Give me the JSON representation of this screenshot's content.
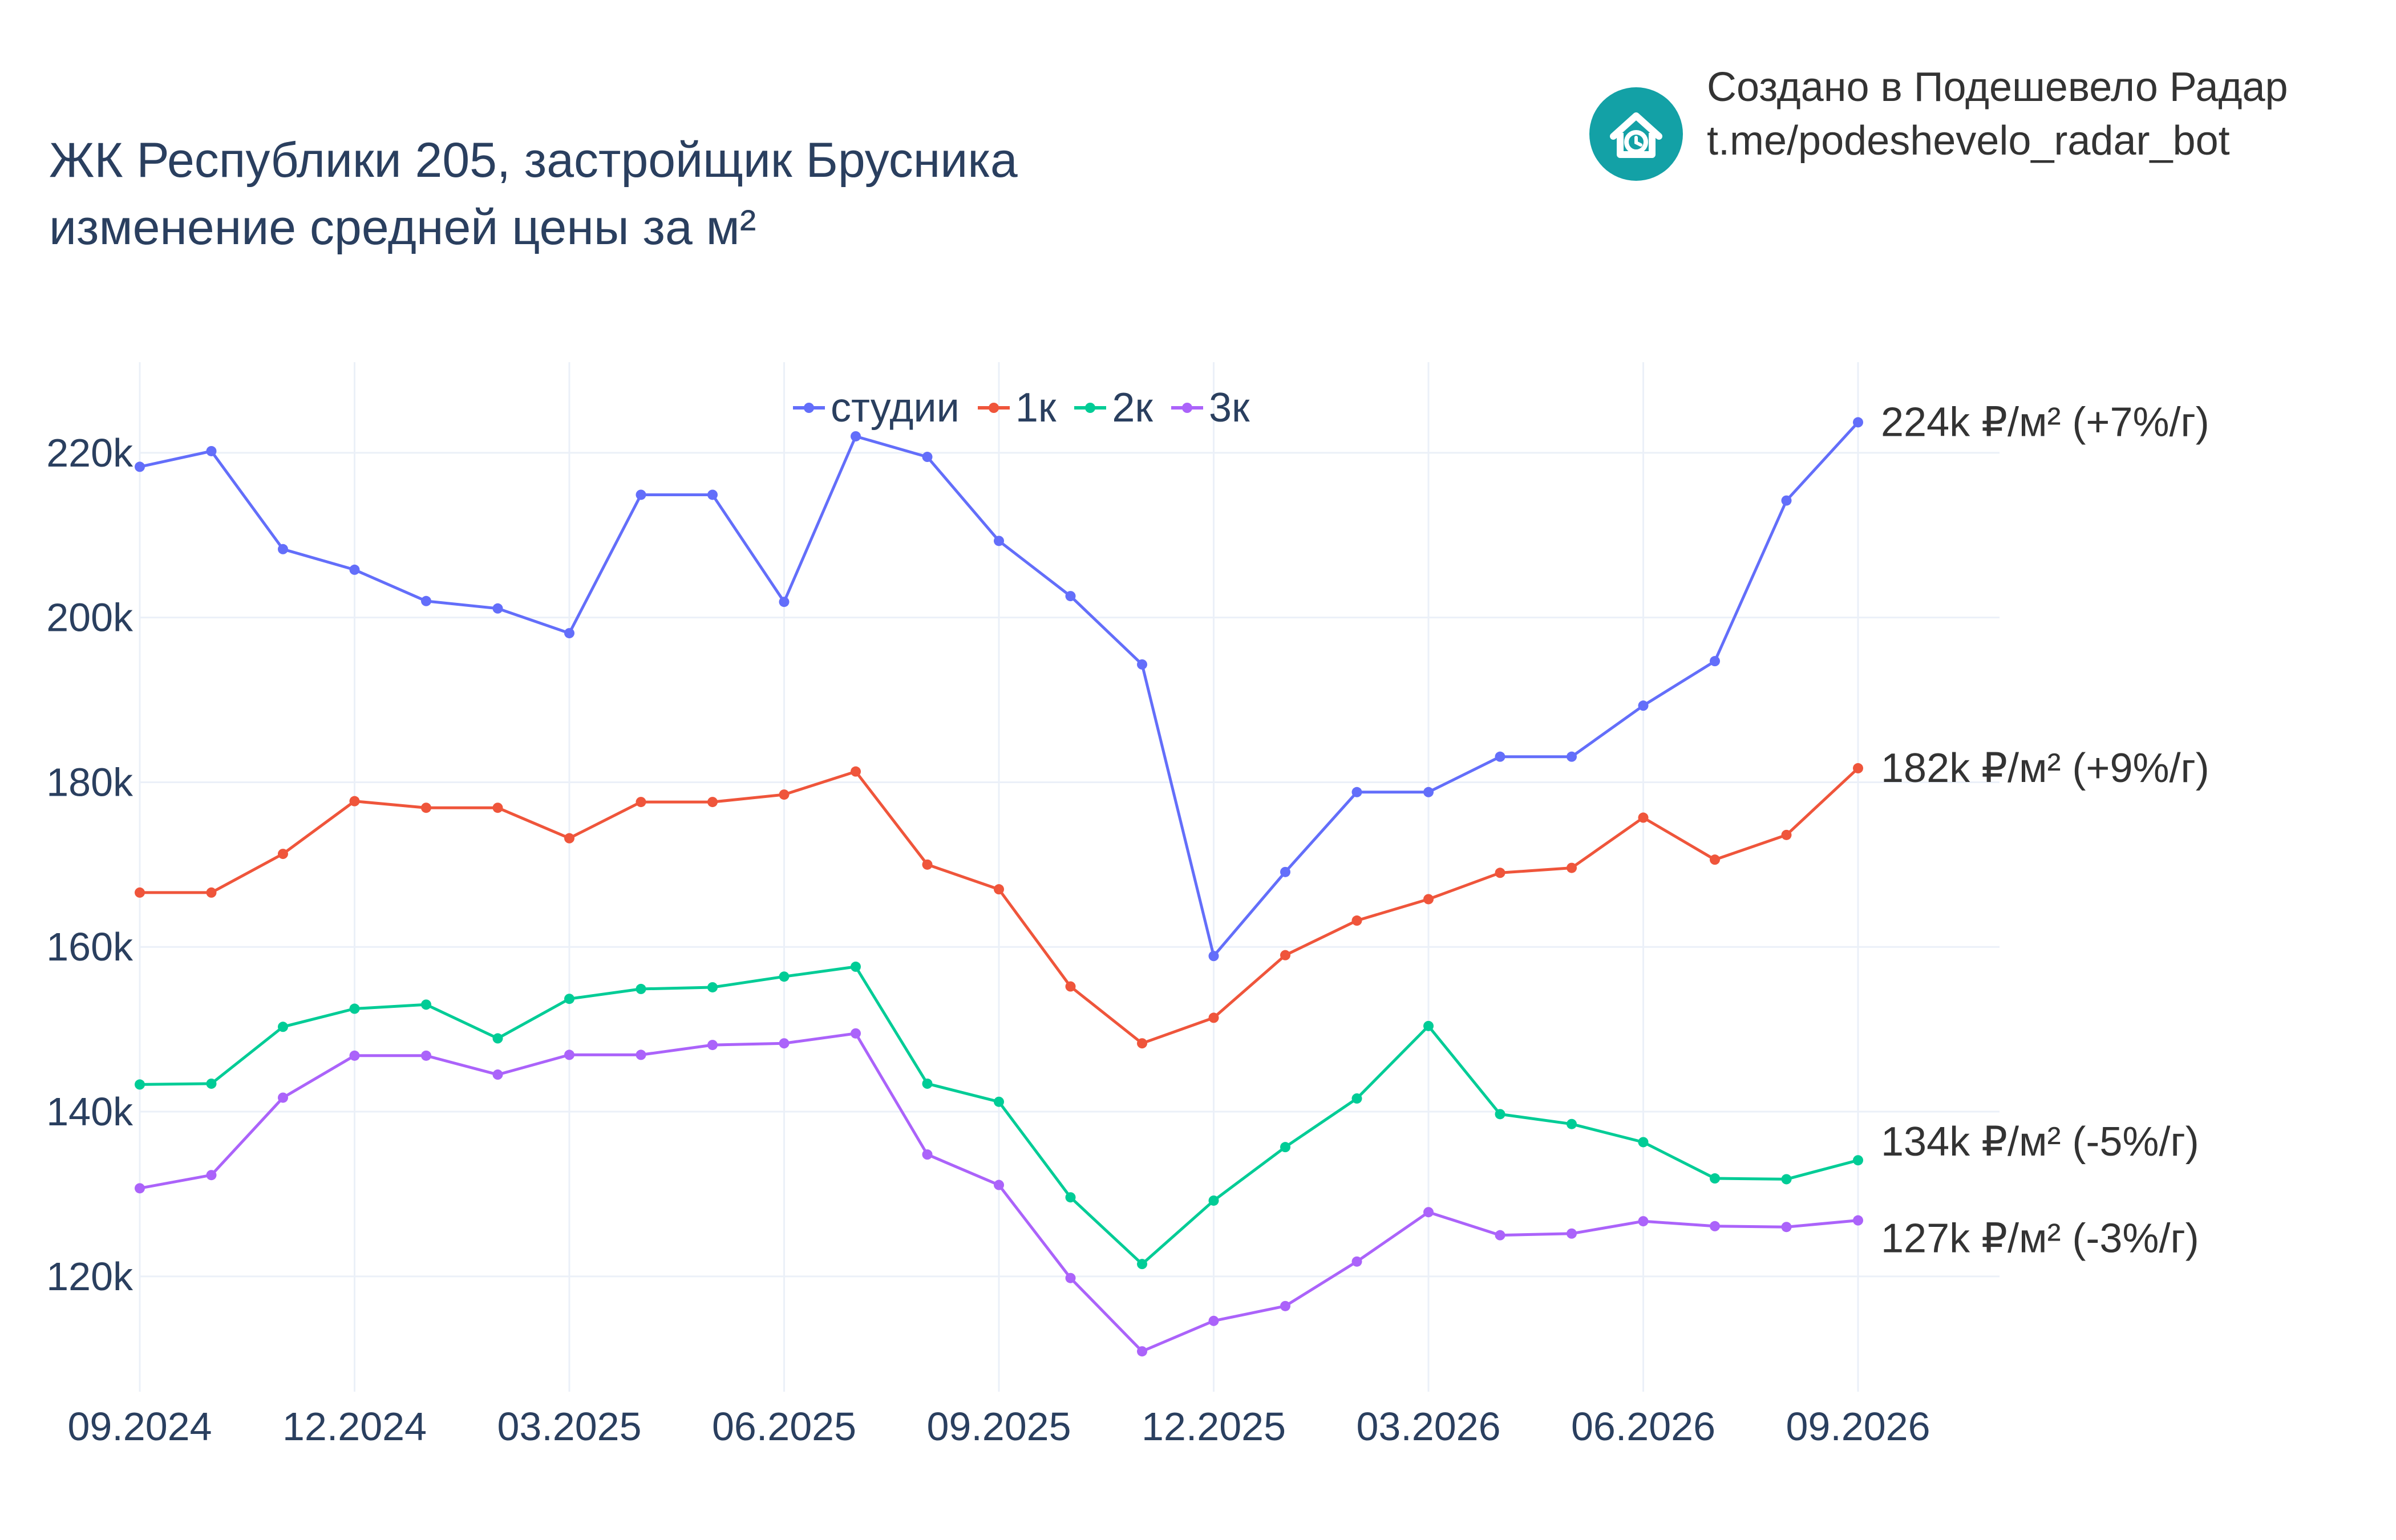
{
  "title": {
    "line1": "ЖК Республики 205, застройщик Брусника",
    "line2": "изменение средней цены за м²"
  },
  "branding": {
    "line1": "Создано в Подешевело Радар",
    "line2": "t.me/podeshevelo_radar_bot",
    "logo_icon": "house-clock-icon",
    "logo_color": "#13a1a6"
  },
  "chart_data": {
    "type": "line",
    "x": [
      "09.2024",
      "10.2024",
      "11.2024",
      "12.2024",
      "01.2025",
      "02.2025",
      "03.2025",
      "04.2025",
      "05.2025",
      "06.2025",
      "07.2025",
      "08.2025",
      "09.2025",
      "10.2025",
      "11.2025",
      "12.2025",
      "01.2026",
      "02.2026",
      "03.2026",
      "04.2026",
      "05.2026",
      "06.2026",
      "07.2026",
      "08.2026",
      "09.2026"
    ],
    "x_tick_labels": [
      "09.2024",
      "12.2024",
      "03.2025",
      "06.2025",
      "09.2025",
      "12.2025",
      "03.2026",
      "06.2026",
      "09.2026"
    ],
    "y_tick_labels": [
      "120k",
      "140k",
      "160k",
      "180k",
      "200k",
      "220k"
    ],
    "y_ticks": [
      120000,
      140000,
      160000,
      180000,
      200000,
      220000
    ],
    "ylim": [
      106000,
      231000
    ],
    "grid": true,
    "legend_position": "top-center",
    "series": [
      {
        "name": "студии",
        "color": "#636efa",
        "values": [
          218300,
          220200,
          208300,
          205800,
          202000,
          201100,
          198100,
          214900,
          214900,
          201900,
          222000,
          219500,
          209300,
          202600,
          194300,
          158900,
          169100,
          178800,
          178800,
          183100,
          183100,
          189300,
          194700,
          214200,
          223700
        ],
        "end_label": "224k ₽/м² (+7%/г)"
      },
      {
        "name": "1к",
        "color": "#ef553b",
        "values": [
          166600,
          166600,
          171300,
          177700,
          176900,
          176900,
          173200,
          177600,
          177600,
          178500,
          181300,
          170000,
          167000,
          155200,
          148300,
          151400,
          159000,
          163200,
          165800,
          169000,
          169600,
          175700,
          170600,
          173600,
          181700
        ],
        "end_label": "182k ₽/м² (+9%/г)"
      },
      {
        "name": "2к",
        "color": "#00cc96",
        "values": [
          143300,
          143400,
          150300,
          152500,
          153000,
          148900,
          153700,
          154900,
          155100,
          156400,
          157600,
          143400,
          141200,
          129600,
          121500,
          129200,
          135700,
          141600,
          150400,
          139700,
          138500,
          136300,
          131900,
          131800,
          134100
        ],
        "end_label": "134k ₽/м² (-5%/г)"
      },
      {
        "name": "3к",
        "color": "#ab63fa",
        "values": [
          130700,
          132300,
          141700,
          146800,
          146800,
          144500,
          146900,
          146900,
          148100,
          148300,
          149500,
          134800,
          131100,
          119800,
          110900,
          114600,
          116400,
          121800,
          127800,
          125000,
          125200,
          126700,
          126100,
          126000,
          126800
        ],
        "end_label": "127k ₽/м² (-3%/г)"
      }
    ]
  }
}
